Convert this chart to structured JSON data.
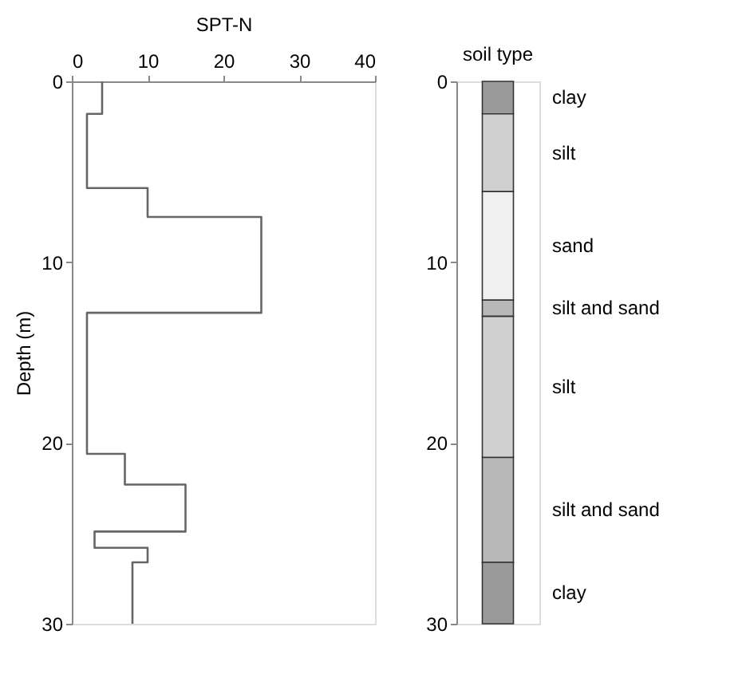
{
  "chart_data": [
    {
      "type": "line",
      "xlabel": "SPT-N",
      "ylabel": "Depth (m)",
      "xlim": [
        0,
        40
      ],
      "xticks": [
        0,
        10,
        20,
        30,
        40
      ],
      "ylim": [
        30,
        0
      ],
      "yticks": [
        0,
        10,
        20,
        30
      ],
      "grid": false,
      "marker": "none",
      "line_style": "solid",
      "series": [
        {
          "color": "#666666",
          "x": [
            4,
            4,
            2,
            2,
            10,
            10,
            25,
            25,
            2,
            2,
            7,
            7,
            15,
            15,
            3,
            3,
            10,
            10,
            8,
            8
          ],
          "values": [
            0,
            1.8,
            1.8,
            5.9,
            5.9,
            7.5,
            7.5,
            12.8,
            12.8,
            20.6,
            20.6,
            22.3,
            22.3,
            24.9,
            24.9,
            25.8,
            25.8,
            26.6,
            26.6,
            30
          ]
        }
      ]
    },
    {
      "type": "bar",
      "title": "soil type",
      "stacked": true,
      "categories": [
        null
      ],
      "ylim": [
        30,
        0
      ],
      "yticks": [
        0,
        10,
        20,
        30
      ],
      "grid": false,
      "tick_labels": "y",
      "series": [
        {
          "name": "clay",
          "color": "#9a9a9a",
          "values": [
            1.8
          ]
        },
        {
          "name": "silt",
          "color": "#d0d0d0",
          "values": [
            4.3
          ]
        },
        {
          "name": "sand",
          "color": "#f0f0f0",
          "values": [
            6.0
          ]
        },
        {
          "name": "silt and sand",
          "color": "#b8b8b8",
          "values": [
            0.9
          ]
        },
        {
          "name": "silt",
          "color": "#d0d0d0",
          "values": [
            7.8
          ]
        },
        {
          "name": "silt and sand",
          "color": "#b8b8b8",
          "values": [
            5.8
          ]
        },
        {
          "name": "clay",
          "color": "#9a9a9a",
          "values": [
            3.4
          ]
        }
      ]
    }
  ]
}
